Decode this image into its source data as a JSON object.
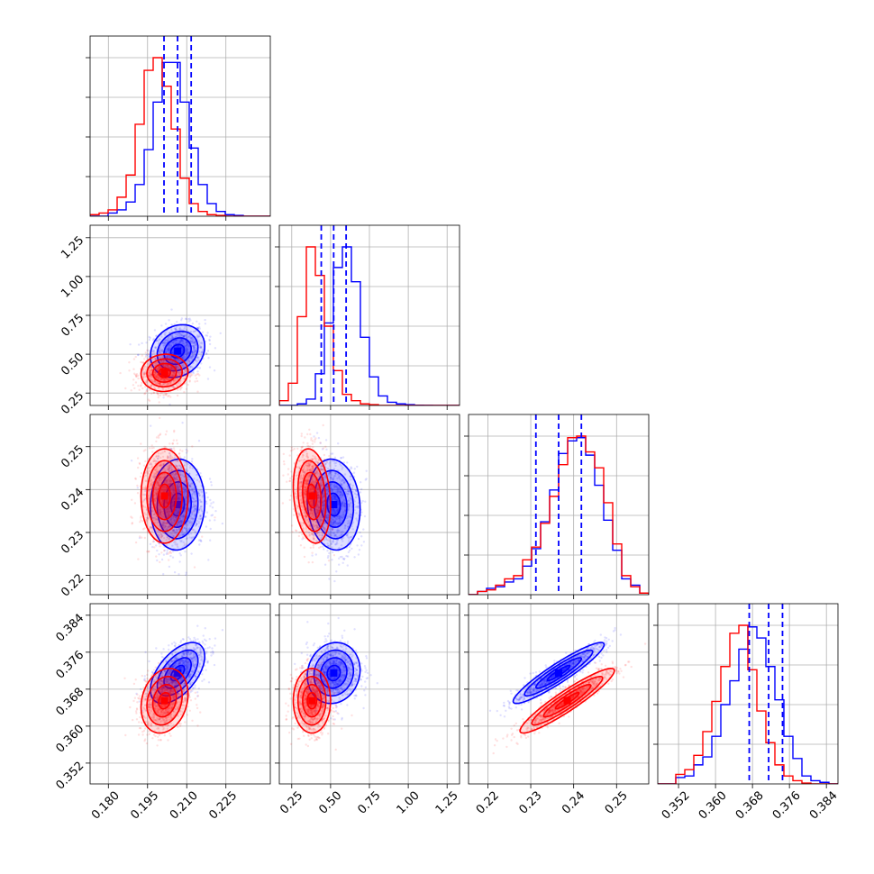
{
  "chart_data": {
    "type": "corner",
    "n_parameters": 4,
    "grid": true,
    "colors": {
      "blue_sample": "#0000ff",
      "red_sample": "#ff0000"
    },
    "parameters": [
      {
        "index": 0,
        "range": [
          0.173,
          0.242
        ],
        "ticks": [
          "0.180",
          "0.195",
          "0.210",
          "0.225"
        ],
        "tick_values": [
          0.18,
          0.195,
          0.21,
          0.225
        ]
      },
      {
        "index": 1,
        "range": [
          0.17,
          1.33
        ],
        "ticks": [
          "0.25",
          "0.50",
          "0.75",
          "1.00",
          "1.25"
        ],
        "tick_values": [
          0.25,
          0.5,
          0.75,
          1.0,
          1.25
        ]
      },
      {
        "index": 2,
        "range": [
          0.2155,
          0.2575
        ],
        "ticks": [
          "0.22",
          "0.23",
          "0.24",
          "0.25"
        ],
        "tick_values": [
          0.22,
          0.23,
          0.24,
          0.25
        ]
      },
      {
        "index": 3,
        "range": [
          0.3475,
          0.3865
        ],
        "ticks": [
          "0.352",
          "0.360",
          "0.368",
          "0.376",
          "0.384"
        ],
        "tick_values": [
          0.352,
          0.36,
          0.368,
          0.376,
          0.384
        ]
      }
    ],
    "series": [
      {
        "color": "#0000ff",
        "means": [
          0.2065,
          0.52,
          0.2365,
          0.3715
        ],
        "sigmas": [
          0.0052,
          0.085,
          0.0053,
          0.0033
        ],
        "quantiles": [
          [
            0.2013,
            0.2065,
            0.2117
          ],
          [
            0.44,
            0.52,
            0.6
          ],
          [
            0.2312,
            0.2365,
            0.2418
          ],
          [
            0.3673,
            0.3715,
            0.3745
          ]
        ],
        "histograms": [
          [
            0,
            0,
            0.02,
            0.04,
            0.09,
            0.2,
            0.42,
            0.72,
            0.97,
            0.97,
            0.72,
            0.43,
            0.2,
            0.08,
            0.03,
            0.01,
            0.005,
            0,
            0,
            0
          ],
          [
            0,
            0,
            0.01,
            0.04,
            0.2,
            0.52,
            0.87,
            1.0,
            0.78,
            0.43,
            0.18,
            0.06,
            0.02,
            0.01,
            0.005,
            0.002,
            0.001,
            0,
            0,
            0
          ],
          [
            0,
            0.02,
            0.04,
            0.05,
            0.08,
            0.1,
            0.18,
            0.29,
            0.46,
            0.66,
            0.89,
            0.97,
            0.99,
            0.88,
            0.69,
            0.47,
            0.28,
            0.1,
            0.06,
            0.01
          ],
          [
            0,
            0,
            0.04,
            0.05,
            0.12,
            0.17,
            0.3,
            0.5,
            0.65,
            0.85,
            0.99,
            0.92,
            0.74,
            0.53,
            0.3,
            0.16,
            0.05,
            0.02,
            0.01,
            0
          ]
        ]
      },
      {
        "color": "#ff0000",
        "means": [
          0.2015,
          0.38,
          0.2385,
          0.3655
        ],
        "sigmas": [
          0.0045,
          0.06,
          0.0055,
          0.0035
        ],
        "quantiles": [],
        "histograms": [
          [
            0.01,
            0.02,
            0.04,
            0.12,
            0.26,
            0.58,
            0.92,
            1.0,
            0.82,
            0.55,
            0.24,
            0.08,
            0.03,
            0.01,
            0.005,
            0,
            0,
            0,
            0,
            0
          ],
          [
            0.03,
            0.14,
            0.56,
            1.0,
            0.82,
            0.5,
            0.22,
            0.07,
            0.03,
            0.01,
            0.005,
            0,
            0,
            0,
            0,
            0,
            0,
            0,
            0,
            0
          ],
          [
            0,
            0.02,
            0.03,
            0.06,
            0.1,
            0.12,
            0.22,
            0.3,
            0.45,
            0.62,
            0.82,
            0.99,
            1.0,
            0.9,
            0.8,
            0.58,
            0.32,
            0.12,
            0.05,
            0.01
          ],
          [
            0,
            0,
            0.06,
            0.09,
            0.18,
            0.33,
            0.52,
            0.74,
            0.95,
            1.0,
            0.72,
            0.46,
            0.26,
            0.12,
            0.05,
            0.02,
            0.005,
            0,
            0,
            0
          ]
        ]
      }
    ],
    "correlations": {
      "blue": {
        "0-1": 0.18,
        "0-2": 0.05,
        "1-2": -0.1,
        "0-3": 0.55,
        "1-3": 0.1,
        "2-3": 0.93
      },
      "red": {
        "0-1": 0.05,
        "0-2": 0.0,
        "1-2": -0.2,
        "0-3": 0.2,
        "1-3": 0.0,
        "2-3": 0.93
      }
    }
  }
}
